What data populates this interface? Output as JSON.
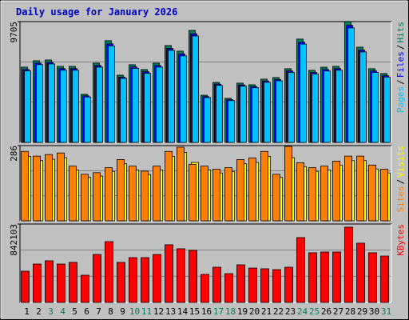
{
  "legend_separator": "/",
  "chart_data": [
    {
      "type": "bar",
      "title": "Daily usage for January 2026",
      "categories": [
        "1",
        "2",
        "3",
        "4",
        "5",
        "6",
        "7",
        "8",
        "9",
        "10",
        "11",
        "12",
        "13",
        "14",
        "15",
        "16",
        "17",
        "18",
        "19",
        "20",
        "21",
        "22",
        "23",
        "24",
        "25",
        "26",
        "27",
        "28",
        "29",
        "30",
        "31"
      ],
      "x_label_colors": [
        "#000000",
        "#000000",
        "#00805c",
        "#00805c",
        "#000000",
        "#000000",
        "#000000",
        "#000000",
        "#000000",
        "#00805c",
        "#00805c",
        "#000000",
        "#000000",
        "#000000",
        "#000000",
        "#000000",
        "#00805c",
        "#00805c",
        "#000000",
        "#000000",
        "#000000",
        "#000000",
        "#000000",
        "#00805c",
        "#00805c",
        "#000000",
        "#000000",
        "#000000",
        "#000000",
        "#000000",
        "#00805c"
      ],
      "ylim": [
        0,
        9705
      ],
      "yticks": [
        9705
      ],
      "grid": true,
      "series": [
        {
          "name": "Pages",
          "color": "#00c0ff",
          "values": [
            5750,
            6250,
            6300,
            5800,
            5800,
            3650,
            6050,
            7750,
            5150,
            5950,
            5550,
            6050,
            7400,
            6950,
            8550,
            3600,
            4580,
            3360,
            4520,
            4400,
            4830,
            4950,
            5620,
            7900,
            5500,
            5740,
            5800,
            9200,
            7270,
            5620,
            5250
          ]
        },
        {
          "name": "Files",
          "color": "#0000ff",
          "values": [
            5860,
            6370,
            6430,
            5930,
            5930,
            3740,
            6180,
            7920,
            5240,
            6060,
            5680,
            6180,
            7550,
            7110,
            8730,
            3680,
            4680,
            3430,
            4620,
            4490,
            4930,
            5050,
            5740,
            8050,
            5620,
            5860,
            5930,
            9410,
            7420,
            5740,
            5360
          ]
        },
        {
          "name": "Hits",
          "color": "#00805c",
          "values": [
            6044,
            6560,
            6620,
            6110,
            6110,
            3860,
            6370,
            8170,
            5400,
            6240,
            5850,
            6370,
            7780,
            7330,
            9000,
            3790,
            4820,
            3540,
            4760,
            4630,
            5080,
            5210,
            5920,
            8300,
            5790,
            6040,
            6110,
            9705,
            7650,
            5920,
            5530
          ]
        }
      ]
    },
    {
      "type": "bar",
      "ylim": [
        0,
        286
      ],
      "yticks": [
        286
      ],
      "grid": true,
      "series": [
        {
          "name": "Sites",
          "color": "#ff8000",
          "values": [
            264,
            246,
            252,
            258,
            208,
            177,
            183,
            202,
            233,
            208,
            189,
            208,
            264,
            280,
            215,
            208,
            196,
            202,
            233,
            239,
            264,
            177,
            283,
            221,
            202,
            208,
            227,
            246,
            246,
            212,
            196
          ]
        },
        {
          "name": "Visits",
          "color": "#ffff00",
          "values": [
            245,
            229,
            234,
            240,
            193,
            165,
            170,
            188,
            217,
            193,
            176,
            193,
            245,
            260,
            222,
            194,
            182,
            188,
            217,
            222,
            245,
            165,
            240,
            206,
            188,
            193,
            211,
            229,
            229,
            197,
            182
          ]
        }
      ]
    },
    {
      "type": "bar",
      "ylim": [
        0,
        842103
      ],
      "yticks": [
        842103
      ],
      "grid": true,
      "series": [
        {
          "name": "KBytes",
          "color": "#ff0000",
          "values": [
            335000,
            412000,
            447000,
            412000,
            430000,
            292000,
            515000,
            653000,
            430000,
            481000,
            481000,
            515000,
            619000,
            576000,
            559000,
            301000,
            378000,
            309000,
            404000,
            369000,
            361000,
            352000,
            378000,
            696000,
            533000,
            541000,
            541000,
            808000,
            636000,
            533000,
            498000
          ]
        }
      ]
    }
  ]
}
